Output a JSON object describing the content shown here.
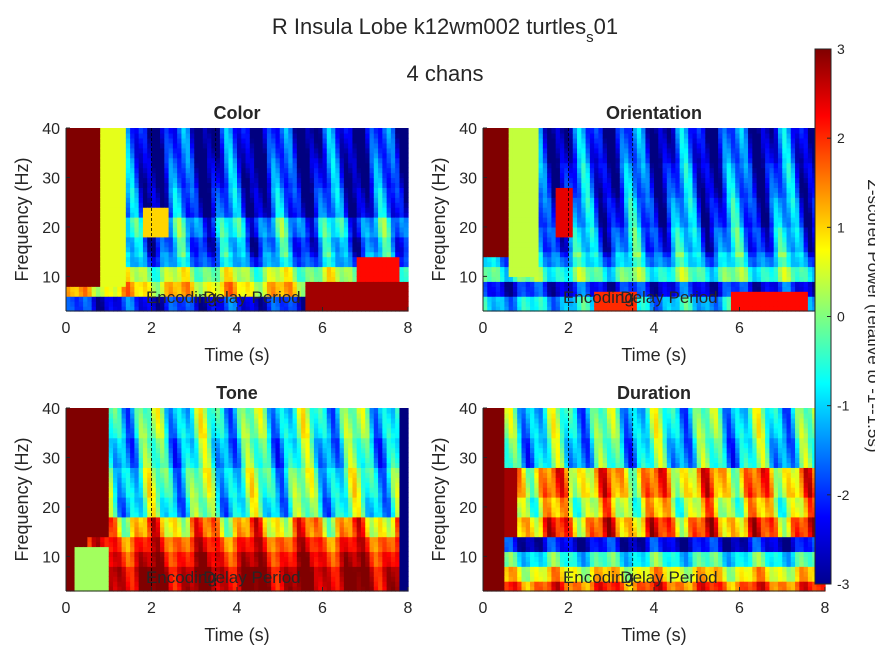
{
  "figure": {
    "title_main": "R Insula Lobe k12wm002 turtles",
    "title_sub": "s",
    "title_tail": "01",
    "subtitle": "4 chans"
  },
  "chart_data": [
    {
      "type": "heatmap",
      "title": "Color",
      "xlabel": "Time (s)",
      "ylabel": "Frequency (Hz)",
      "xlim": [
        0,
        8
      ],
      "ylim": [
        3,
        40
      ],
      "xticks": [
        "0",
        "2",
        "4",
        "6",
        "8"
      ],
      "yticks": [
        "10",
        "20",
        "30",
        "40"
      ],
      "annotations": [
        "Encoding",
        "Delay Period"
      ],
      "event_lines_s": [
        2.0,
        3.5
      ],
      "bands": [
        {
          "f0": 3,
          "f1": 6,
          "v": -2.2
        },
        {
          "f0": 6,
          "f1": 9,
          "v": 0.9
        },
        {
          "f0": 9,
          "f1": 12,
          "v": 0.2
        },
        {
          "f0": 12,
          "f1": 15,
          "v": -1.4
        },
        {
          "f0": 15,
          "f1": 18,
          "v": -1.6
        },
        {
          "f0": 18,
          "f1": 22,
          "v": -1.2
        },
        {
          "f0": 22,
          "f1": 28,
          "v": -2.1
        },
        {
          "f0": 28,
          "f1": 34,
          "v": -2.3
        },
        {
          "f0": 34,
          "f1": 40,
          "v": -2.4
        }
      ],
      "patches": [
        {
          "t0": 0.0,
          "t1": 0.8,
          "f0": 8,
          "f1": 40,
          "v": 3.0
        },
        {
          "t0": 0.8,
          "t1": 1.4,
          "f0": 8,
          "f1": 40,
          "v": 0.6
        },
        {
          "t0": 5.6,
          "t1": 8.0,
          "f0": 3,
          "f1": 9,
          "v": 2.8
        },
        {
          "t0": 6.8,
          "t1": 7.8,
          "f0": 9,
          "f1": 14,
          "v": 2.2
        },
        {
          "t0": 1.8,
          "t1": 2.4,
          "f0": 18,
          "f1": 24,
          "v": 1.0
        }
      ]
    },
    {
      "type": "heatmap",
      "title": "Orientation",
      "xlabel": "Time (s)",
      "ylabel": "Frequency (Hz)",
      "xlim": [
        0,
        8
      ],
      "ylim": [
        3,
        40
      ],
      "xticks": [
        "0",
        "2",
        "4",
        "6"
      ],
      "yticks": [
        "10",
        "20",
        "30",
        "40"
      ],
      "annotations": [
        "Encoding",
        "Delay Period"
      ],
      "event_lines_s": [
        2.0,
        3.5
      ],
      "bands": [
        {
          "f0": 3,
          "f1": 6,
          "v": -1.0
        },
        {
          "f0": 6,
          "f1": 9,
          "v": -2.2
        },
        {
          "f0": 9,
          "f1": 12,
          "v": -0.3
        },
        {
          "f0": 12,
          "f1": 15,
          "v": -1.1
        },
        {
          "f0": 15,
          "f1": 20,
          "v": -1.5
        },
        {
          "f0": 20,
          "f1": 26,
          "v": -1.8
        },
        {
          "f0": 26,
          "f1": 33,
          "v": -2.0
        },
        {
          "f0": 33,
          "f1": 40,
          "v": -2.2
        }
      ],
      "patches": [
        {
          "t0": 0.0,
          "t1": 0.6,
          "f0": 14,
          "f1": 40,
          "v": 3.0
        },
        {
          "t0": 0.6,
          "t1": 1.3,
          "f0": 10,
          "f1": 40,
          "v": 0.4
        },
        {
          "t0": 1.7,
          "t1": 2.1,
          "f0": 18,
          "f1": 28,
          "v": 2.4
        },
        {
          "t0": 2.6,
          "t1": 3.6,
          "f0": 3,
          "f1": 7,
          "v": 2.0
        },
        {
          "t0": 5.8,
          "t1": 7.6,
          "f0": 3,
          "f1": 7,
          "v": 2.2
        }
      ]
    },
    {
      "type": "heatmap",
      "title": "Tone",
      "xlabel": "Time (s)",
      "ylabel": "Frequency (Hz)",
      "xlim": [
        0,
        8
      ],
      "ylim": [
        3,
        40
      ],
      "xticks": [
        "0",
        "2",
        "4",
        "6",
        "8"
      ],
      "yticks": [
        "10",
        "20",
        "30",
        "40"
      ],
      "annotations": [
        "Encoding",
        "Delay Period"
      ],
      "event_lines_s": [
        2.0,
        3.5
      ],
      "bands": [
        {
          "f0": 3,
          "f1": 8,
          "v": 2.8
        },
        {
          "f0": 8,
          "f1": 11,
          "v": 2.4
        },
        {
          "f0": 11,
          "f1": 14,
          "v": 2.0
        },
        {
          "f0": 14,
          "f1": 18,
          "v": 1.2
        },
        {
          "f0": 18,
          "f1": 22,
          "v": -0.6
        },
        {
          "f0": 22,
          "f1": 28,
          "v": -0.4
        },
        {
          "f0": 28,
          "f1": 34,
          "v": -0.8
        },
        {
          "f0": 34,
          "f1": 40,
          "v": -0.5
        }
      ],
      "patches": [
        {
          "t0": 0.0,
          "t1": 0.5,
          "f0": 3,
          "f1": 40,
          "v": 3.0
        },
        {
          "t0": 0.5,
          "t1": 1.0,
          "f0": 14,
          "f1": 40,
          "v": 3.0
        },
        {
          "t0": 0.2,
          "t1": 1.0,
          "f0": 3,
          "f1": 12,
          "v": 0.2
        },
        {
          "t0": 7.8,
          "t1": 8.0,
          "f0": 3,
          "f1": 40,
          "v": -3.0
        }
      ]
    },
    {
      "type": "heatmap",
      "title": "Duration",
      "xlabel": "Time (s)",
      "ylabel": "Frequency (Hz)",
      "xlim": [
        0,
        8
      ],
      "ylim": [
        3,
        40
      ],
      "xticks": [
        "0",
        "2",
        "4",
        "6",
        "8"
      ],
      "yticks": [
        "10",
        "20",
        "30",
        "40"
      ],
      "annotations": [
        "Encoding",
        "Delay Period"
      ],
      "event_lines_s": [
        2.0,
        3.5
      ],
      "bands": [
        {
          "f0": 3,
          "f1": 5,
          "v": 1.8
        },
        {
          "f0": 5,
          "f1": 8,
          "v": 0.8
        },
        {
          "f0": 8,
          "f1": 11,
          "v": -0.6
        },
        {
          "f0": 11,
          "f1": 14,
          "v": -2.4
        },
        {
          "f0": 14,
          "f1": 18,
          "v": 1.6
        },
        {
          "f0": 18,
          "f1": 22,
          "v": 0.6
        },
        {
          "f0": 22,
          "f1": 28,
          "v": 1.2
        },
        {
          "f0": 28,
          "f1": 34,
          "v": -0.8
        },
        {
          "f0": 34,
          "f1": 40,
          "v": -0.6
        }
      ],
      "patches": [
        {
          "t0": 0.0,
          "t1": 0.5,
          "f0": 3,
          "f1": 40,
          "v": 3.0
        },
        {
          "t0": 0.5,
          "t1": 0.8,
          "f0": 14,
          "f1": 28,
          "v": 2.8
        }
      ]
    }
  ],
  "colorbar": {
    "label": "Z-scored Power (relative to -1--1.5s)",
    "vmin": -3,
    "vmax": 3,
    "ticks": [
      "3",
      "2",
      "1",
      "0",
      "-1",
      "-2",
      "-3"
    ],
    "colormap": "jet"
  }
}
